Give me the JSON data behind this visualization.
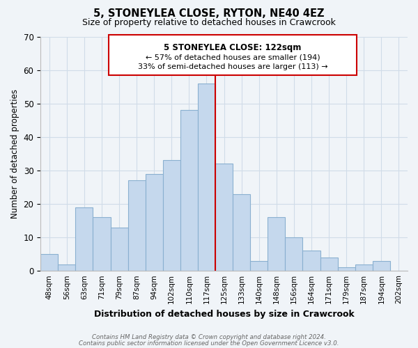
{
  "title": "5, STONEYLEA CLOSE, RYTON, NE40 4EZ",
  "subtitle": "Size of property relative to detached houses in Crawcrook",
  "xlabel": "Distribution of detached houses by size in Crawcrook",
  "ylabel": "Number of detached properties",
  "bar_labels": [
    "48sqm",
    "56sqm",
    "63sqm",
    "71sqm",
    "79sqm",
    "87sqm",
    "94sqm",
    "102sqm",
    "110sqm",
    "117sqm",
    "125sqm",
    "133sqm",
    "140sqm",
    "148sqm",
    "156sqm",
    "164sqm",
    "171sqm",
    "179sqm",
    "187sqm",
    "194sqm",
    "202sqm"
  ],
  "bar_values": [
    5,
    2,
    19,
    16,
    13,
    27,
    29,
    33,
    48,
    56,
    32,
    23,
    3,
    16,
    10,
    6,
    4,
    1,
    2,
    3,
    0
  ],
  "bar_color": "#c5d8ed",
  "bar_edge_color": "#8ab0d0",
  "vline_color": "#cc0000",
  "ylim": [
    0,
    70
  ],
  "yticks": [
    0,
    10,
    20,
    30,
    40,
    50,
    60,
    70
  ],
  "annotation_title": "5 STONEYLEA CLOSE: 122sqm",
  "annotation_line1": "← 57% of detached houses are smaller (194)",
  "annotation_line2": "33% of semi-detached houses are larger (113) →",
  "annotation_box_color": "#ffffff",
  "annotation_box_edge": "#cc0000",
  "footer_line1": "Contains HM Land Registry data © Crown copyright and database right 2024.",
  "footer_line2": "Contains public sector information licensed under the Open Government Licence v3.0.",
  "grid_color": "#d0dce8",
  "background_color": "#f0f4f8"
}
